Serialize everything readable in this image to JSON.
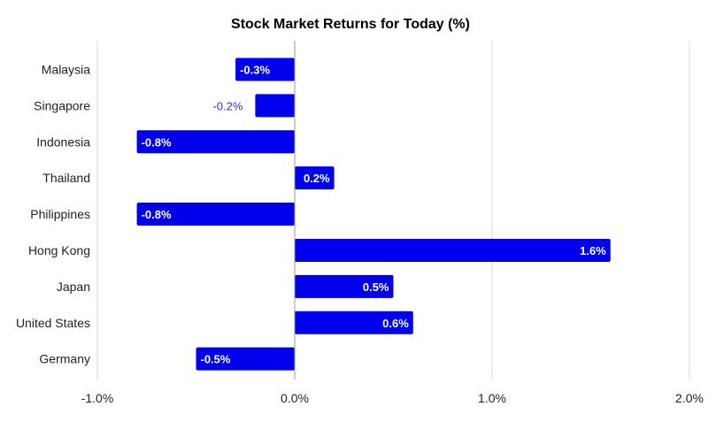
{
  "chart_data": {
    "type": "bar",
    "orientation": "horizontal",
    "title": "Stock Market Returns for Today (%)",
    "xlabel": "",
    "ylabel": "",
    "categories": [
      "Malaysia",
      "Singapore",
      "Indonesia",
      "Thailand",
      "Philippines",
      "Hong Kong",
      "Japan",
      "United States",
      "Germany"
    ],
    "values": [
      -0.3,
      -0.2,
      -0.8,
      0.2,
      -0.8,
      1.6,
      0.5,
      0.6,
      -0.5
    ],
    "value_labels": [
      "-0.3%",
      "-0.2%",
      "-0.8%",
      "0.2%",
      "-0.8%",
      "1.6%",
      "0.5%",
      "0.6%",
      "-0.5%"
    ],
    "xlim": [
      -1.0,
      2.0
    ],
    "xticks": [
      -1.0,
      0.0,
      1.0,
      2.0
    ],
    "xtick_labels": [
      "-1.0%",
      "0.0%",
      "1.0%",
      "2.0%"
    ],
    "grid": true,
    "legend": "none",
    "bar_color": "#0000ee",
    "outside_label_color": "#3333dd"
  }
}
